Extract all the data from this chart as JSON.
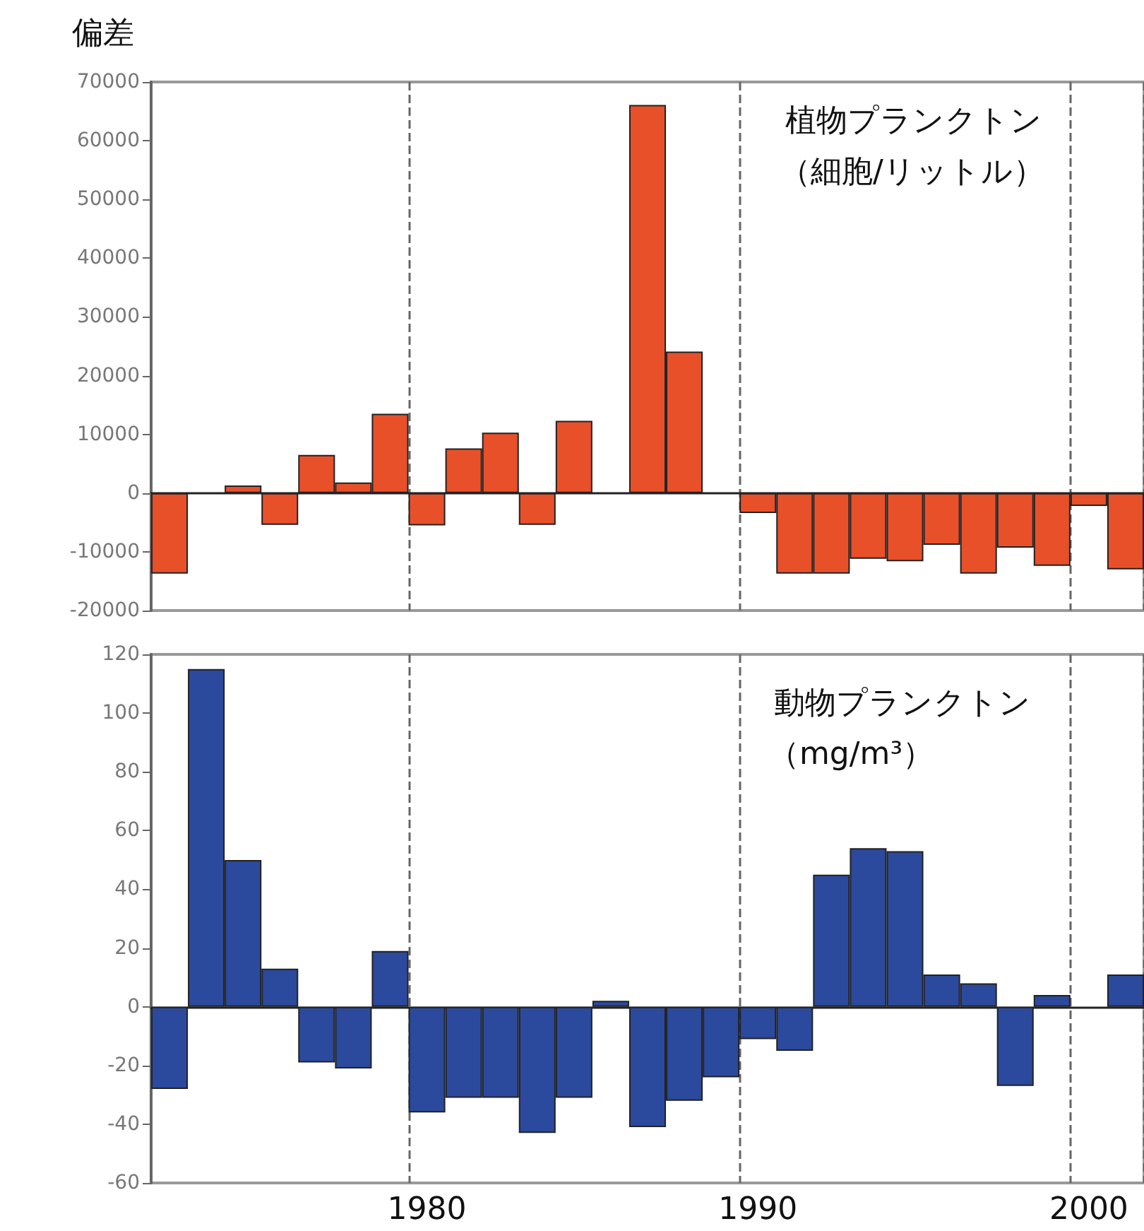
{
  "chart_data": [
    {
      "type": "bar",
      "title": "植物プランクトン",
      "subtitle": "（細胞/リットル）",
      "ylabel": "偏差",
      "categories": [
        null,
        null,
        null,
        null,
        null,
        null,
        null,
        "1980",
        null,
        null,
        null,
        null,
        null,
        null,
        null,
        null,
        "1990",
        null,
        null,
        null,
        null,
        null,
        null,
        null,
        null,
        "2000",
        null
      ],
      "series": [
        {
          "color": "#e8502a",
          "values": [
            -13700,
            null,
            1300,
            -5400,
            6500,
            1800,
            13500,
            -5500,
            7600,
            10300,
            -5400,
            12300,
            null,
            66100,
            24100,
            null,
            -3400,
            -13700,
            -13700,
            -11200,
            -11600,
            -8800,
            -13700,
            -9300,
            -12400,
            -2200,
            -13000
          ]
        }
      ],
      "ylim": [
        -20000,
        70000
      ],
      "yticks": [
        -20000,
        -10000,
        0,
        10000,
        20000,
        30000,
        40000,
        50000,
        60000,
        70000
      ],
      "grid": "x",
      "tick_labels": "y"
    },
    {
      "type": "bar",
      "title": "動物プランクトン",
      "subtitle": "（mg/m³）",
      "categories": [
        null,
        null,
        null,
        null,
        null,
        null,
        null,
        "1980",
        null,
        null,
        null,
        null,
        null,
        null,
        null,
        null,
        "1990",
        null,
        null,
        null,
        null,
        null,
        null,
        null,
        null,
        "2000",
        null
      ],
      "series": [
        {
          "color": "#2b4a9e",
          "values": [
            -28,
            115,
            50,
            13,
            -19,
            -21,
            19,
            -36,
            -31,
            -31,
            -43,
            -31,
            2,
            -41,
            -32,
            -24,
            -11,
            -15,
            45,
            54,
            53,
            11,
            8,
            -27,
            4,
            null,
            11
          ]
        }
      ],
      "ylim": [
        -60,
        120
      ],
      "yticks": [
        -60,
        -40,
        -20,
        0,
        20,
        40,
        60,
        80,
        100,
        120
      ],
      "grid": "x"
    }
  ]
}
